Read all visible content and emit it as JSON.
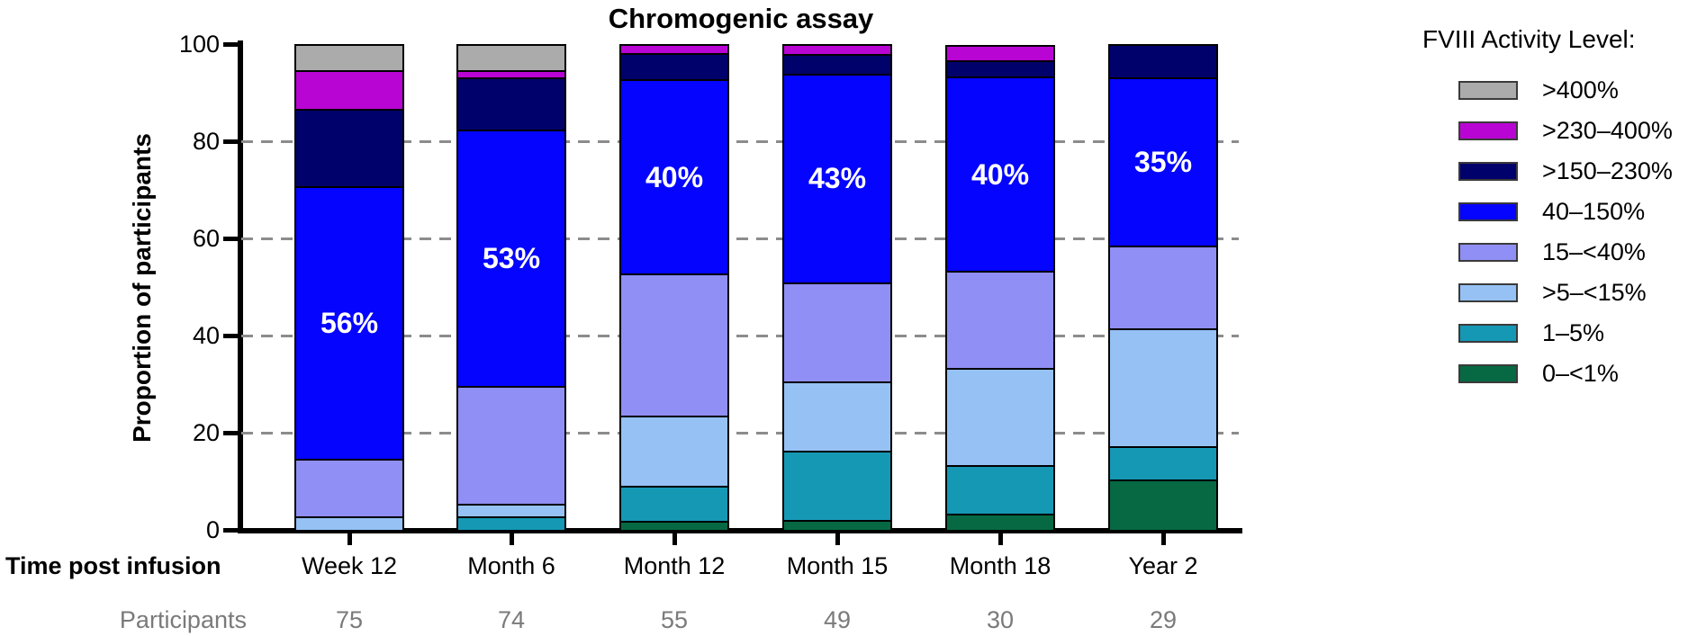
{
  "chart": {
    "title": "Chromogenic assay",
    "y_axis_label": "Proportion of participants",
    "x_axis_caption": "Time post infusion",
    "participants_caption": "Participants"
  },
  "legend": {
    "title": "FVIII Activity Level:"
  },
  "chart_data": {
    "type": "stacked-bar",
    "title": "Chromogenic assay",
    "xlabel": "Time post infusion",
    "ylabel": "Proportion of participants",
    "ylim": [
      0,
      100
    ],
    "y_ticks": [
      0,
      20,
      40,
      60,
      80,
      100
    ],
    "gridlines_at": [
      20,
      40,
      60,
      80
    ],
    "grid": "dashed-horizontal",
    "legend_position": "right",
    "categories": [
      "Week 12",
      "Month 6",
      "Month 12",
      "Month 15",
      "Month 18",
      "Year 2"
    ],
    "participants": [
      75,
      74,
      55,
      49,
      30,
      29
    ],
    "series": [
      {
        "name": ">400%",
        "color": "#ABABAB",
        "values": [
          5.3,
          5.4,
          0,
          0,
          0,
          0
        ]
      },
      {
        "name": ">230–400%",
        "color": "#B905D4",
        "values": [
          8,
          1.4,
          1.8,
          2,
          3.3,
          0
        ]
      },
      {
        "name": ">150–230%",
        "color": "#01016B",
        "values": [
          16,
          10.8,
          5.5,
          4.1,
          3.3,
          6.9
        ]
      },
      {
        "name": "40–150%",
        "color": "#0404FF",
        "values": [
          56,
          52.7,
          40,
          42.9,
          40,
          34.5
        ]
      },
      {
        "name": "15–<40%",
        "color": "#908FF5",
        "values": [
          12,
          24.3,
          29.1,
          20.4,
          20,
          17.2
        ]
      },
      {
        "name": ">5–<15%",
        "color": "#95C1F5",
        "values": [
          2.7,
          2.7,
          14.5,
          14.3,
          20,
          24.2
        ]
      },
      {
        "name": "1–5%",
        "color": "#1598B4",
        "values": [
          0,
          2.7,
          7.3,
          14.3,
          10,
          6.9
        ]
      },
      {
        "name": "0–<1%",
        "color": "#076943",
        "values": [
          0,
          0,
          1.8,
          2,
          3.3,
          10.3
        ]
      }
    ],
    "bar_labels": {
      "series": "40–150%",
      "values": [
        "56%",
        "53%",
        "40%",
        "43%",
        "40%",
        "35%"
      ]
    }
  }
}
